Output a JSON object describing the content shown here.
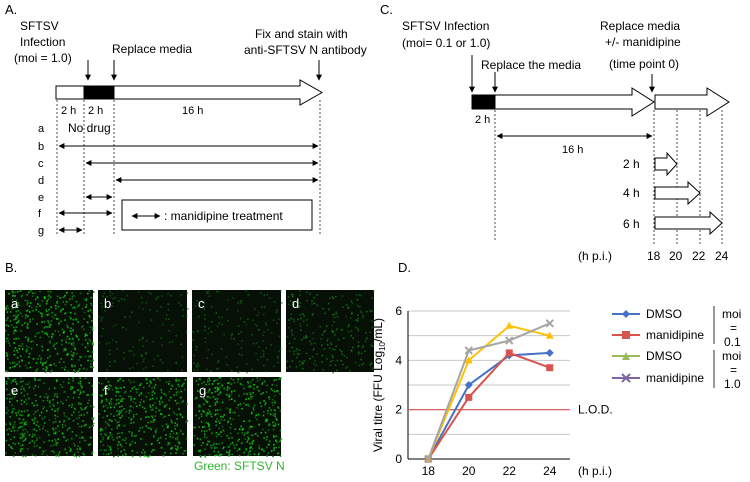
{
  "panel_a": {
    "letter": "A.",
    "infection_line1": "SFTSV",
    "infection_line2": "Infection",
    "infection_line3": "(moi = 1.0)",
    "replace_media": "Replace media",
    "fix_line1": "Fix and stain with",
    "fix_line2": "anti-SFTSV N antibody",
    "seg1": "2 h",
    "seg2": "2 h",
    "seg3": "16 h",
    "no_drug": "No drug",
    "rows": [
      "a",
      "b",
      "c",
      "d",
      "e",
      "f",
      "g"
    ],
    "legend": ": manidipine treatment"
  },
  "panel_b": {
    "letter": "B.",
    "tiles": [
      "a",
      "b",
      "c",
      "d",
      "e",
      "f",
      "g"
    ],
    "tile_intensity": [
      0.95,
      0.2,
      0.25,
      0.45,
      0.85,
      0.9,
      0.95
    ],
    "caption": "Green: SFTSV N"
  },
  "panel_c": {
    "letter": "C.",
    "infection_line1": "SFTSV Infection",
    "infection_line2": "(moi= 0.1 or 1.0)",
    "replace_the_media": "Replace the media",
    "replace2_line1": "Replace media",
    "replace2_line2": "+/- manidipine",
    "replace2_line3": "(time point 0)",
    "seg1": "2 h",
    "seg2": "16 h",
    "times": [
      "2 h",
      "4 h",
      "6 h"
    ],
    "axis_unit": "(h p.i.)",
    "axis_ticks": [
      "18",
      "20",
      "22",
      "24"
    ]
  },
  "panel_d": {
    "letter": "D.",
    "lod": "L.O.D.",
    "moi_a": [
      "moi",
      "=",
      "0.1"
    ],
    "moi_b": [
      "moi",
      "=",
      "1.0"
    ],
    "xunit": "(h p.i.)"
  },
  "chart_data": {
    "type": "line",
    "title": "",
    "xlabel": "(h p.i.)",
    "ylabel": "Viral titre (FFU Log10/mL)",
    "ylabel_main": "Viral titre (FFU Log",
    "ylabel_sub": "10",
    "ylabel_tail": "/mL)",
    "x": [
      18,
      20,
      22,
      24
    ],
    "xlim": [
      17,
      25
    ],
    "ylim": [
      0,
      6
    ],
    "yticks": [
      "0",
      "2",
      "4",
      "6"
    ],
    "xticks": [
      "18",
      "20",
      "22",
      "24"
    ],
    "lod_value": 2,
    "lod_color": "#d9534f",
    "series": [
      {
        "name": "DMSO",
        "moi": "0.1",
        "color": "#4472c4",
        "marker": "diamond",
        "values": [
          0,
          3.0,
          4.2,
          4.3
        ]
      },
      {
        "name": "manidipine",
        "moi": "0.1",
        "color": "#d9534f",
        "marker": "square",
        "values": [
          0,
          2.5,
          4.3,
          3.7
        ]
      },
      {
        "name": "DMSO",
        "moi": "1.0",
        "color": "#ffc000",
        "marker": "triangle",
        "values": [
          0,
          4.0,
          5.4,
          5.0
        ]
      },
      {
        "name": "manidipine",
        "moi": "1.0",
        "color": "#a5a5a5",
        "marker": "cross",
        "values": [
          0,
          4.4,
          4.8,
          5.5
        ]
      }
    ],
    "legend": [
      {
        "label": "DMSO",
        "color": "#4472c4"
      },
      {
        "label": "manidipine",
        "color": "#d9534f"
      },
      {
        "label": "DMSO",
        "color": "#9bbb59"
      },
      {
        "label": "manidipine",
        "color": "#8064a2"
      }
    ]
  }
}
